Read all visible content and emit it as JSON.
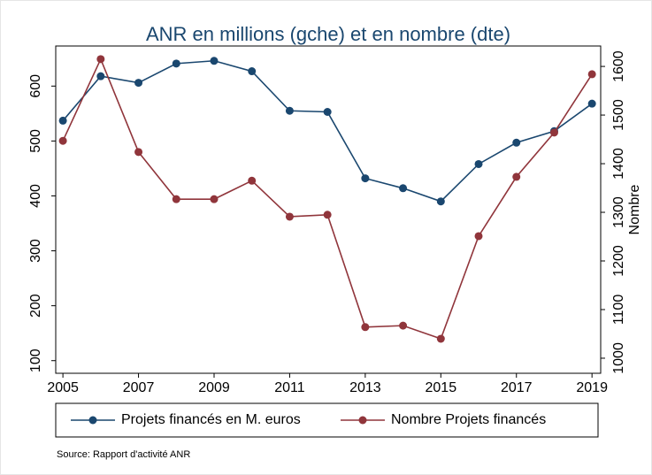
{
  "chart_data": {
    "type": "line",
    "title": "ANR en millions (gche) et en nombre (dte)",
    "y2label": "Nombre",
    "note": "Source: Rapport d'activité ANR",
    "x": [
      2005,
      2006,
      2007,
      2008,
      2009,
      2010,
      2011,
      2012,
      2013,
      2014,
      2015,
      2016,
      2017,
      2018,
      2019
    ],
    "xlim": [
      2004.81,
      2019.23
    ],
    "xticks": [
      2005,
      2007,
      2009,
      2011,
      2013,
      2015,
      2017,
      2019
    ],
    "ylim": [
      77,
      673
    ],
    "yticks": [
      100,
      200,
      300,
      400,
      500,
      600
    ],
    "y2lim": [
      969,
      1642
    ],
    "y2ticks": [
      1000,
      1100,
      1200,
      1300,
      1400,
      1500,
      1600
    ],
    "series": [
      {
        "name": "Projets financés en M. euros",
        "color": "#1a476f",
        "values": [
          537,
          618,
          606,
          641,
          646,
          627,
          555,
          553,
          432,
          414,
          390,
          458,
          497,
          518,
          568
        ]
      },
      {
        "name": "Nombre Projets financés",
        "color": "#90353b",
        "axis": "y2",
        "values": [
          1447,
          1615,
          1424,
          1327,
          1327,
          1365,
          1291,
          1295,
          1064,
          1067,
          1040,
          1251,
          1373,
          1464,
          1584
        ]
      }
    ]
  }
}
